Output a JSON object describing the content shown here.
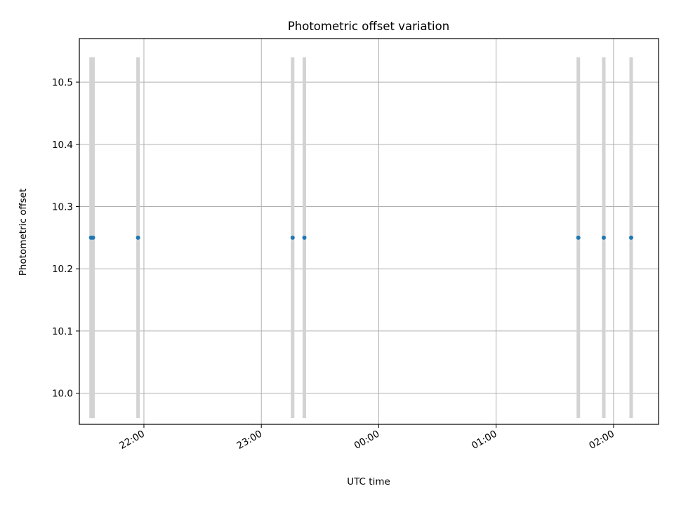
{
  "chart_data": {
    "type": "scatter",
    "title": "Photometric offset variation",
    "xlabel": "UTC time",
    "ylabel": "Photometric offset",
    "x_axis_kind": "time",
    "x_ticks": [
      {
        "label": "22:00",
        "time": "22:00"
      },
      {
        "label": "23:00",
        "time": "23:00"
      },
      {
        "label": "00:00",
        "time": "00:00"
      },
      {
        "label": "01:00",
        "time": "01:00"
      },
      {
        "label": "02:00",
        "time": "02:00"
      }
    ],
    "xlim": [
      "21:27",
      "02:23"
    ],
    "ylim": [
      9.95,
      10.57
    ],
    "y_ticks": [
      10.0,
      10.1,
      10.2,
      10.3,
      10.4,
      10.5
    ],
    "grid": true,
    "series": [
      {
        "color": "#1f77b4",
        "error_bar_color": "#d3d3d3",
        "points": [
          {
            "time": "21:33",
            "y": 10.25,
            "ylow": 9.96,
            "yhigh": 10.54
          },
          {
            "time": "21:34",
            "y": 10.25,
            "ylow": 9.96,
            "yhigh": 10.54
          },
          {
            "time": "21:57",
            "y": 10.25,
            "ylow": 9.96,
            "yhigh": 10.54
          },
          {
            "time": "23:16",
            "y": 10.25,
            "ylow": 9.96,
            "yhigh": 10.54
          },
          {
            "time": "23:22",
            "y": 10.25,
            "ylow": 9.96,
            "yhigh": 10.54
          },
          {
            "time": "01:42",
            "y": 10.25,
            "ylow": 9.96,
            "yhigh": 10.54
          },
          {
            "time": "01:55",
            "y": 10.25,
            "ylow": 9.96,
            "yhigh": 10.54
          },
          {
            "time": "02:09",
            "y": 10.25,
            "ylow": 9.96,
            "yhigh": 10.54
          }
        ]
      }
    ]
  }
}
